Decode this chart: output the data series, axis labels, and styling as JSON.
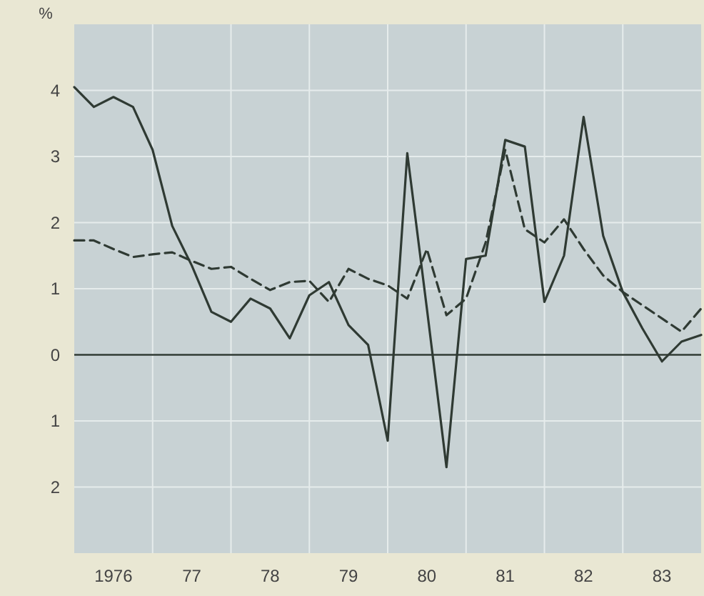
{
  "chart_data": {
    "type": "line",
    "ylabel": "%",
    "categories": [
      null,
      null,
      "1976",
      null,
      null,
      null,
      "77",
      null,
      null,
      null,
      "78",
      null,
      null,
      null,
      "79",
      null,
      null,
      null,
      "80",
      null,
      null,
      null,
      "81",
      null,
      null,
      null,
      "82",
      null,
      null,
      null,
      "83",
      null,
      null
    ],
    "series": [
      {
        "color": "#2f3a33",
        "line_style": "solid",
        "values": [
          4.05,
          3.75,
          3.9,
          3.75,
          3.1,
          1.95,
          1.35,
          0.65,
          0.5,
          0.85,
          0.7,
          0.25,
          0.9,
          1.1,
          0.45,
          0.15,
          -1.3,
          3.05,
          0.7,
          -1.7,
          1.45,
          1.5,
          3.25,
          3.15,
          0.8,
          1.5,
          3.6,
          1.8,
          0.95,
          0.4,
          -0.1,
          0.2,
          0.3
        ]
      },
      {
        "color": "#2f3a33",
        "line_style": "dashed",
        "values": [
          1.73,
          1.73,
          1.6,
          1.48,
          1.52,
          1.55,
          1.42,
          1.3,
          1.33,
          1.15,
          0.98,
          1.1,
          1.12,
          0.8,
          1.3,
          1.15,
          1.05,
          0.85,
          1.6,
          0.6,
          0.85,
          1.7,
          3.1,
          1.9,
          1.7,
          2.05,
          1.6,
          1.2,
          0.95,
          0.75,
          0.55,
          0.35,
          0.7
        ]
      }
    ],
    "ylim": [
      -3,
      5
    ],
    "yticks": [
      {
        "value": -2,
        "label": "2"
      },
      {
        "value": -1,
        "label": "1"
      },
      0,
      1,
      2,
      3,
      4
    ],
    "ref_lines": [
      {
        "axis": "y",
        "value": 0,
        "color": "#2f3a33"
      }
    ],
    "grid": true,
    "marker": "none"
  }
}
